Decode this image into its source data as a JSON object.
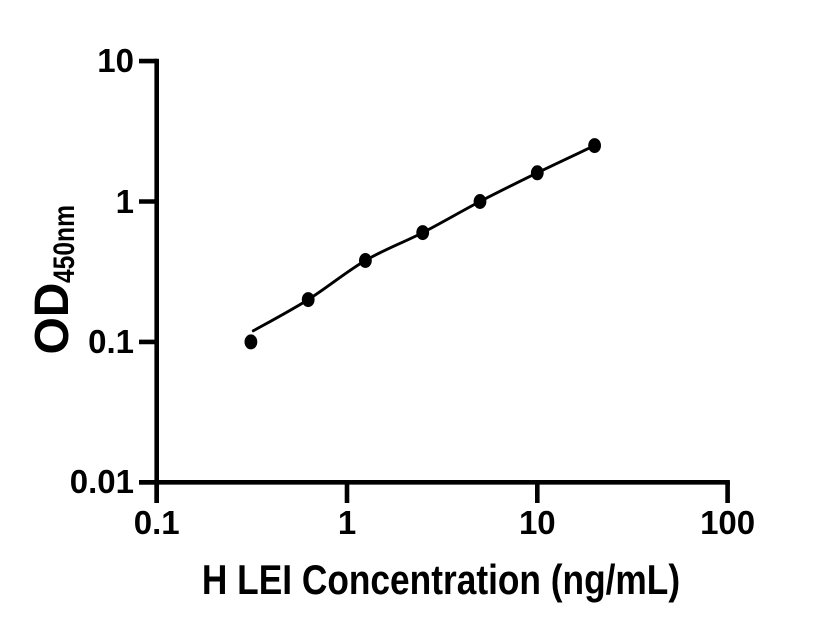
{
  "chart_data": {
    "type": "scatter",
    "title": "",
    "xlabel": "H LEI Concentration (ng/mL)",
    "ylabel_main": "OD",
    "ylabel_sub": "450nm",
    "xscale": "log",
    "yscale": "log",
    "xlim": [
      0.1,
      100
    ],
    "ylim": [
      0.01,
      10
    ],
    "x_ticks": [
      0.1,
      1,
      10,
      100
    ],
    "x_tick_labels": [
      "0.1",
      "1",
      "10",
      "100"
    ],
    "y_ticks": [
      10,
      1,
      0.1,
      0.01
    ],
    "y_tick_labels": [
      "10",
      "1",
      "0.1",
      "0.01"
    ],
    "points_x": [
      0.3125,
      0.625,
      1.25,
      2.5,
      5,
      10,
      20
    ],
    "points_y": [
      0.1,
      0.2,
      0.38,
      0.6,
      1.0,
      1.6,
      2.5
    ],
    "fit_line_x": [
      0.322,
      0.625,
      1.25,
      2.5,
      5,
      10,
      20
    ],
    "fit_line_y": [
      0.12,
      0.2,
      0.38,
      0.6,
      1.0,
      1.6,
      2.5
    ],
    "grid": "off",
    "legend": "none",
    "colors": {
      "marker": "#000000",
      "line": "#000000",
      "axis": "#000000",
      "text": "#000000",
      "background": "#ffffff"
    }
  }
}
